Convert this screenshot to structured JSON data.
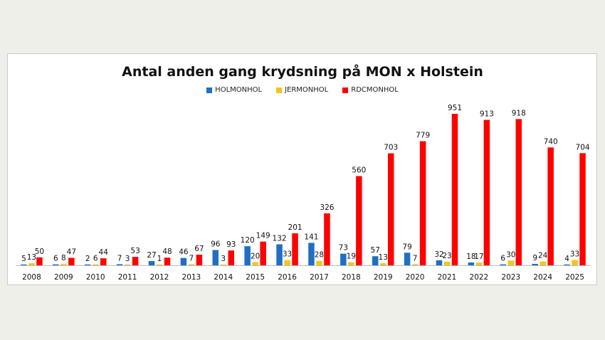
{
  "chart_data": {
    "type": "bar",
    "title": "Antal anden gang krydsning på MON x Holstein",
    "xlabel": "",
    "ylabel": "",
    "ylim": [
      0,
      1000
    ],
    "grid": false,
    "legend_position": "top",
    "categories": [
      "2008",
      "2009",
      "2010",
      "2011",
      "2012",
      "2013",
      "2014",
      "2015",
      "2016",
      "2017",
      "2018",
      "2019",
      "2020",
      "2021",
      "2022",
      "2023",
      "2024",
      "2025"
    ],
    "series": [
      {
        "name": "HOLMONHOL",
        "color": "#1f6fc4",
        "values": [
          5,
          6,
          2,
          7,
          27,
          46,
          96,
          120,
          132,
          141,
          73,
          57,
          79,
          32,
          18,
          6,
          9,
          4
        ],
        "labels": [
          "5",
          "6",
          "2",
          "7",
          "27",
          "46",
          "96",
          "120",
          "132",
          "141",
          "73",
          "57",
          "79",
          "32",
          "18",
          "6",
          "9",
          "4"
        ]
      },
      {
        "name": "JERMONHOL",
        "color": "#f5c518",
        "values": [
          13,
          8,
          6,
          3,
          1,
          7,
          3,
          20,
          33,
          28,
          19,
          13,
          7,
          23,
          17,
          30,
          24,
          33
        ],
        "labels": [
          "13",
          "8",
          "6",
          "3",
          "1",
          "7",
          "3",
          "20",
          "33",
          "28",
          "19",
          "13",
          "7",
          "23",
          "17",
          "30",
          "24",
          "33"
        ]
      },
      {
        "name": "RDCMONHOL",
        "color": "#ff0000",
        "values": [
          50,
          47,
          44,
          53,
          48,
          67,
          93,
          149,
          201,
          326,
          560,
          703,
          779,
          951,
          913,
          918,
          740,
          704
        ],
        "labels": [
          "50",
          "47",
          "44",
          "53",
          "48",
          "67",
          "93",
          "149",
          "201",
          "326",
          "560",
          "703",
          "779",
          "951",
          "913",
          "918",
          "740",
          "704"
        ]
      }
    ]
  }
}
